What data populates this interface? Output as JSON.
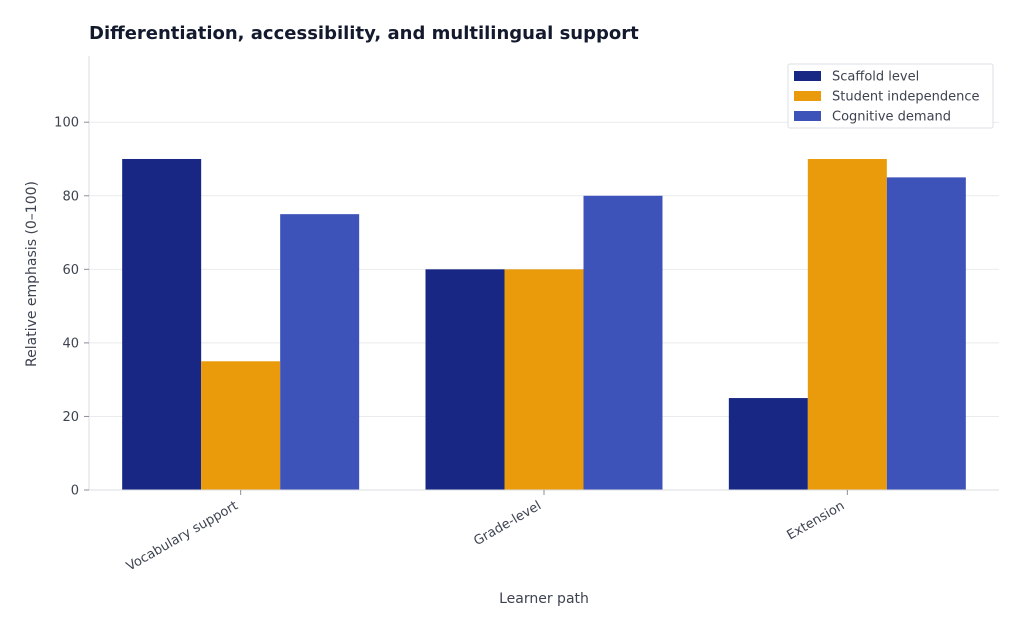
{
  "chart_data": {
    "type": "bar",
    "title": "Differentiation, accessibility, and multilingual support",
    "xlabel": "Learner path",
    "ylabel": "Relative emphasis (0–100)",
    "categories": [
      "Vocabulary support",
      "Grade-level",
      "Extension"
    ],
    "series": [
      {
        "name": "Scaffold level",
        "values": [
          90,
          60,
          25
        ],
        "color": "#172783"
      },
      {
        "name": "Student independence",
        "values": [
          35,
          60,
          90
        ],
        "color": "#e99b0c"
      },
      {
        "name": "Cognitive demand",
        "values": [
          75,
          80,
          85
        ],
        "color": "#3e53b9"
      }
    ],
    "y_ticks": [
      0,
      20,
      40,
      60,
      80,
      100
    ],
    "ylim": [
      0,
      118
    ],
    "grid": "horizontal",
    "legend_position": "top-right"
  }
}
